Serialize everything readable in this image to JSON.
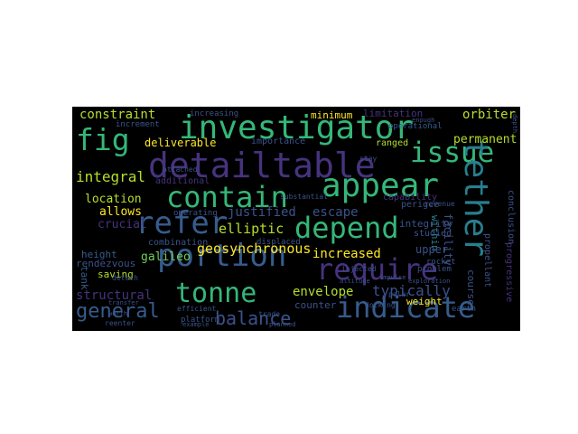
{
  "palette": {
    "purple": "#46337e",
    "darkblue": "#365c8d",
    "blue": "#3b528b",
    "teal": "#277f8e",
    "teal2": "#21918c",
    "green": "#35b779",
    "lightgreen": "#6ece58",
    "yellow": "#fde725",
    "yellowgreen": "#b5de2b"
  },
  "words": [
    {
      "text": "investigator",
      "color": "#35b779"
    },
    {
      "text": "fig",
      "color": "#35b779"
    },
    {
      "text": "detailtable",
      "color": "#46337e"
    },
    {
      "text": "issue",
      "color": "#35b779"
    },
    {
      "text": "contain",
      "color": "#35b779"
    },
    {
      "text": "appear",
      "color": "#35b779"
    },
    {
      "text": "refer",
      "color": "#365c8d"
    },
    {
      "text": "depend",
      "color": "#35b779"
    },
    {
      "text": "portion",
      "color": "#365c8d"
    },
    {
      "text": "require",
      "color": "#46337e"
    },
    {
      "text": "tether",
      "color": "#277f8e"
    },
    {
      "text": "tonne",
      "color": "#35b779"
    },
    {
      "text": "indicate",
      "color": "#365c8d"
    },
    {
      "text": "general",
      "color": "#365c8d"
    },
    {
      "text": "balance",
      "color": "#3b528b"
    },
    {
      "text": "constraint",
      "color": "#b5de2b"
    },
    {
      "text": "minimum",
      "color": "#fde725"
    },
    {
      "text": "orbiter",
      "color": "#b5de2b"
    },
    {
      "text": "deliverable",
      "color": "#fde725"
    },
    {
      "text": "permanent",
      "color": "#b5de2b"
    },
    {
      "text": "integral",
      "color": "#b5de2b"
    },
    {
      "text": "allows",
      "color": "#fde725"
    },
    {
      "text": "justified",
      "color": "#3b528b"
    },
    {
      "text": "elliptic",
      "color": "#b5de2b"
    },
    {
      "text": "escape",
      "color": "#3b528b"
    },
    {
      "text": "crucial",
      "color": "#46337e"
    },
    {
      "text": "galileo",
      "color": "#6ece58"
    },
    {
      "text": "geosynchronous",
      "color": "#fde725"
    },
    {
      "text": "increased",
      "color": "#fde725"
    },
    {
      "text": "envelope",
      "color": "#b5de2b"
    },
    {
      "text": "typically",
      "color": "#3b528b"
    },
    {
      "text": "structural",
      "color": "#46337e"
    },
    {
      "text": "location",
      "color": "#b5de2b"
    },
    {
      "text": "rendezvous",
      "color": "#3b528b"
    },
    {
      "text": "increasing",
      "color": "#3b528b"
    },
    {
      "text": "limitation",
      "color": "#46337e"
    },
    {
      "text": "importance",
      "color": "#3b528b"
    },
    {
      "text": "ranged",
      "color": "#b5de2b"
    },
    {
      "text": "integrity",
      "color": "#3b528b"
    },
    {
      "text": "operational",
      "color": "#365c8d"
    },
    {
      "text": "facility",
      "color": "#3b528b"
    },
    {
      "text": "within",
      "color": "#277f8e"
    },
    {
      "text": "height",
      "color": "#365c8d"
    },
    {
      "text": "combination",
      "color": "#3b528b"
    },
    {
      "text": "saving",
      "color": "#b5de2b"
    },
    {
      "text": "tank",
      "color": "#365c8d"
    },
    {
      "text": "counter",
      "color": "#3b528b"
    },
    {
      "text": "weight",
      "color": "#fde725"
    },
    {
      "text": "course",
      "color": "#3b528b"
    },
    {
      "text": "progressive",
      "color": "#46337e"
    },
    {
      "text": "upper",
      "color": "#3b528b"
    },
    {
      "text": "studied",
      "color": "#3b528b"
    },
    {
      "text": "perigee",
      "color": "#3b528b"
    },
    {
      "text": "conclusion",
      "color": "#3b528b"
    },
    {
      "text": "additional",
      "color": "#46337e"
    },
    {
      "text": "capability",
      "color": "#46337e"
    },
    {
      "text": "platform",
      "color": "#3b528b"
    },
    {
      "text": "efficient",
      "color": "#3b528b"
    },
    {
      "text": "displaced",
      "color": "#3b528b"
    },
    {
      "text": "injected",
      "color": "#3b528b"
    },
    {
      "text": "attached",
      "color": "#3b528b"
    },
    {
      "text": "increment",
      "color": "#3b528b"
    },
    {
      "text": "problem",
      "color": "#3b528b"
    },
    {
      "text": "rocket",
      "color": "#3b528b"
    },
    {
      "text": "propellant",
      "color": "#3b528b"
    },
    {
      "text": "earth",
      "color": "#3b528b"
    },
    {
      "text": "trade",
      "color": "#3b528b"
    },
    {
      "text": "detach",
      "color": "#3b528b"
    },
    {
      "text": "reenter",
      "color": "#3b528b"
    },
    {
      "text": "substantial",
      "color": "#3b528b"
    },
    {
      "text": "operating",
      "color": "#3b528b"
    },
    {
      "text": "stay",
      "color": "#3b528b"
    },
    {
      "text": "polar",
      "color": "#3b528b"
    },
    {
      "text": "revenue",
      "color": "#3b528b"
    },
    {
      "text": "example",
      "color": "#3b528b"
    },
    {
      "text": "depth",
      "color": "#3b528b"
    },
    {
      "text": "transfer",
      "color": "#3b528b"
    },
    {
      "text": "exploration",
      "color": "#3b528b"
    },
    {
      "text": "impulse",
      "color": "#3b528b"
    },
    {
      "text": "altitude",
      "color": "#3b528b"
    },
    {
      "text": "enough",
      "color": "#3b528b"
    },
    {
      "text": "docking",
      "color": "#3b528b"
    },
    {
      "text": "planned",
      "color": "#3b528b"
    },
    {
      "text": "worth",
      "color": "#3b528b"
    }
  ]
}
